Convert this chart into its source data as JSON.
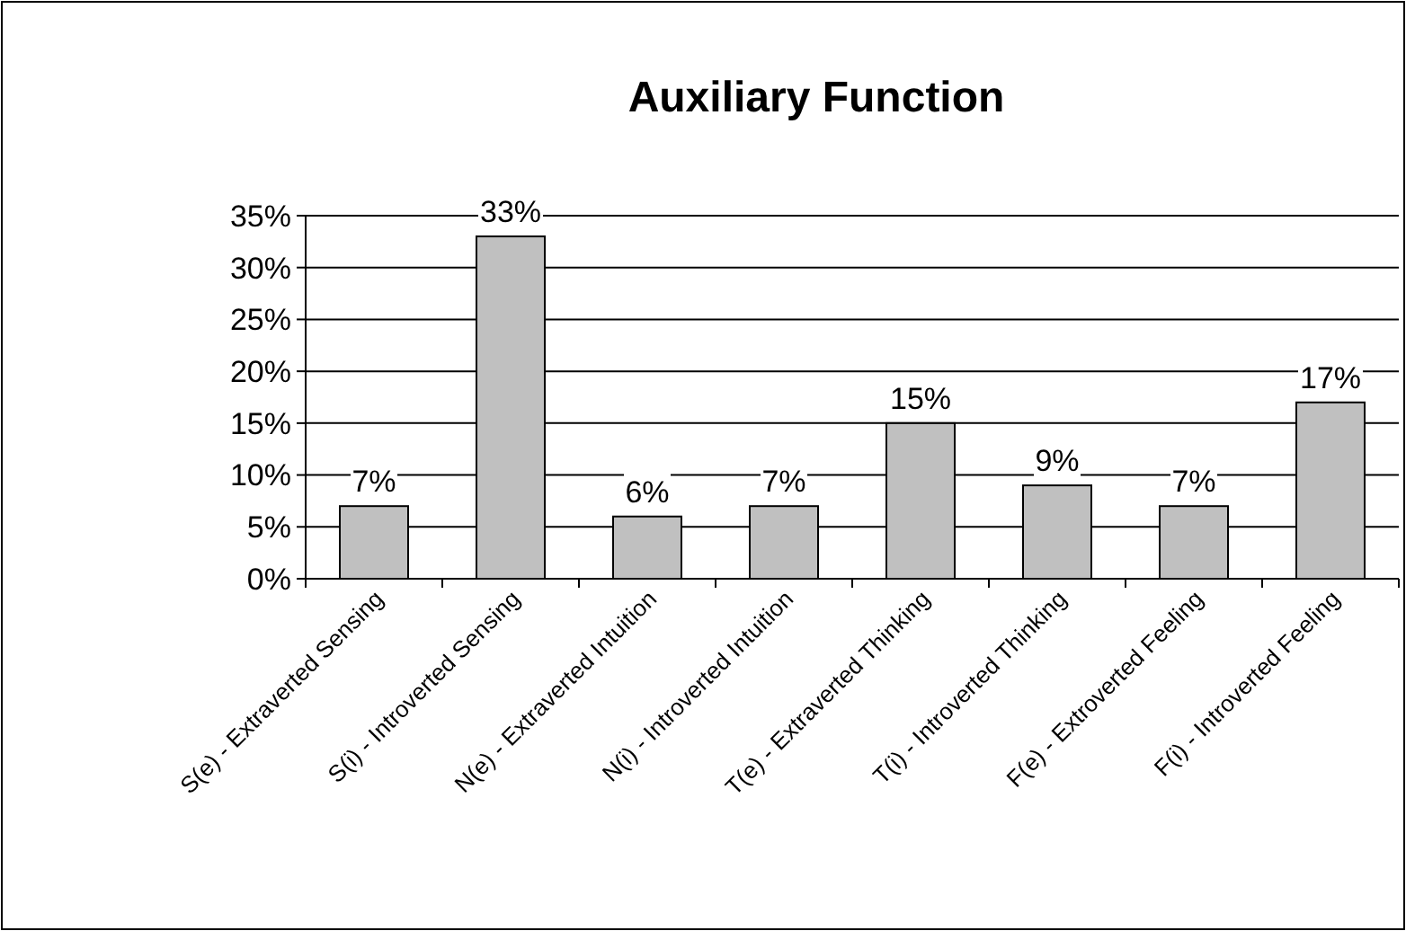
{
  "chart_data": {
    "type": "bar",
    "title": "Auxiliary Function",
    "categories": [
      "S(e) - Extraverted Sensing",
      "S(i) - Introverted Sensing",
      "N(e) - Extraverted Intuition",
      "N(i) - Introverted Intuition",
      "T(e) - Extraverted Thinking",
      "T(i) - Introverted Thinking",
      "F(e) - Extroverted Feeling",
      "F(i) - Introverted Feeling"
    ],
    "values": [
      7,
      33,
      6,
      7,
      15,
      9,
      7,
      17
    ],
    "value_labels": [
      "7%",
      "33%",
      "6%",
      "7%",
      "15%",
      "9%",
      "7%",
      "17%"
    ],
    "color": "#c0c0c0",
    "ylim": [
      0,
      35
    ],
    "yticks": [
      {
        "value": 0,
        "label": "0%"
      },
      {
        "value": 5,
        "label": "5%"
      },
      {
        "value": 10,
        "label": "10%"
      },
      {
        "value": 15,
        "label": "15%"
      },
      {
        "value": 20,
        "label": "20%"
      },
      {
        "value": 25,
        "label": "25%"
      },
      {
        "value": 30,
        "label": "30%"
      },
      {
        "value": 35,
        "label": "35%"
      }
    ],
    "grid": "y"
  }
}
